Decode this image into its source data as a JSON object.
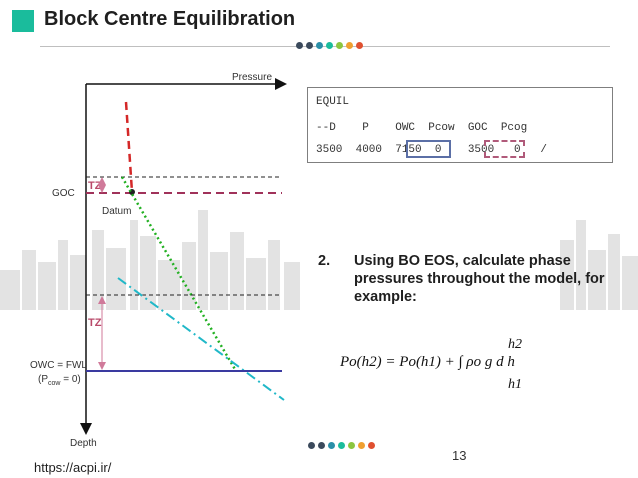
{
  "title": "Block Centre Equilibration",
  "colors": {
    "title_accent": "#1abc9c",
    "goc_line": "#a0325a",
    "oil_gradient": "#22b022",
    "water_gradient": "#20b8c8",
    "owc_line": "#3a3aa0",
    "tz_arrow": "#d07a9a"
  },
  "decor_dots": [
    "#3b4a5c",
    "#3b4a5c",
    "#2a8fa8",
    "#1abc9c",
    "#8cc63f",
    "#f0a030",
    "#e05030"
  ],
  "diagram": {
    "pressure_label": "Pressure",
    "depth_label": "Depth",
    "goc_label": "GOC",
    "datum_label": "Datum",
    "tz_label": "TZ",
    "owc_label": "OWC = FWL",
    "pcow_label_pre": "(P",
    "pcow_label_sub": "cow",
    "pcow_label_post": " = 0)"
  },
  "equil": {
    "line1": "EQUIL",
    "line2": "--D    P    OWC  Pcow  GOC  Pcog",
    "line3": "3500  4000  7150  0    3500   0   /"
  },
  "step": {
    "number": "2.",
    "text": " Using BO EOS, calculate phase pressures throughout the model, for example:"
  },
  "formula": {
    "upper_limit": "h2",
    "lower_limit": "h1",
    "expression": "Po(h2) = Po(h1) + ∫ ρo g d h"
  },
  "page_number": "13",
  "url": "https://acpi.ir/"
}
